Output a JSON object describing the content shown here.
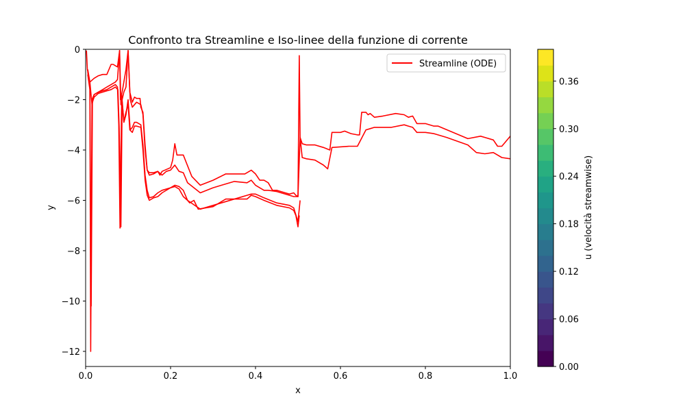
{
  "chart_data": {
    "type": "line",
    "title": "Confronto tra Streamline e Iso-linee della funzione di corrente",
    "xlabel": "x",
    "ylabel": "y",
    "xlim": [
      0,
      1.0
    ],
    "ylim": [
      -12.6,
      0
    ],
    "xticks": [
      "0.0",
      "0.2",
      "0.4",
      "0.6",
      "0.8",
      "1.0"
    ],
    "yticks": [
      "0",
      "−2",
      "−4",
      "−6",
      "−8",
      "−10",
      "−12"
    ],
    "xtick_values": [
      0,
      0.2,
      0.4,
      0.6,
      0.8,
      1.0
    ],
    "ytick_values": [
      0,
      -2,
      -4,
      -6,
      -8,
      -10,
      -12
    ],
    "grid": false,
    "legend": {
      "position": "top-right",
      "label": "Streamline (ODE)"
    },
    "line_color": "#ff0000",
    "series": [
      {
        "x": [
          0.002,
          0.004,
          0.01,
          0.02,
          0.03,
          0.04,
          0.05,
          0.06,
          0.065,
          0.07,
          0.075,
          0.08,
          0.082,
          0.086,
          0.09,
          0.095,
          0.1,
          0.104,
          0.11,
          0.115,
          0.12,
          0.128,
          0.13,
          0.135,
          0.14,
          0.145,
          0.15,
          0.16,
          0.17,
          0.175,
          0.18,
          0.2,
          0.205,
          0.21,
          0.215,
          0.225,
          0.23,
          0.25,
          0.27,
          0.3,
          0.33,
          0.36,
          0.375,
          0.39,
          0.4,
          0.41,
          0.42,
          0.43,
          0.44,
          0.45,
          0.46,
          0.47,
          0.48,
          0.49,
          0.495,
          0.5,
          0.503,
          0.505,
          0.51,
          0.52,
          0.54,
          0.56,
          0.575,
          0.58,
          0.6,
          0.61,
          0.625,
          0.64,
          0.645,
          0.65,
          0.66,
          0.665,
          0.67,
          0.68,
          0.7,
          0.73,
          0.75,
          0.76,
          0.77,
          0.78,
          0.8,
          0.82,
          0.83,
          0.9,
          0.93,
          0.94,
          0.96,
          0.97,
          0.98,
          1.0
        ],
        "y": [
          -0.05,
          -0.8,
          -1.3,
          -1.15,
          -1.05,
          -1.0,
          -1.0,
          -0.6,
          -0.6,
          -0.65,
          -0.7,
          -0.05,
          -2.0,
          -1.7,
          -1.3,
          -0.8,
          -0.05,
          -1.7,
          -2.1,
          -1.9,
          -1.95,
          -1.95,
          -2.3,
          -2.5,
          -3.8,
          -4.8,
          -4.9,
          -4.9,
          -4.85,
          -5.0,
          -4.85,
          -4.7,
          -4.4,
          -3.75,
          -4.2,
          -4.2,
          -4.2,
          -5.05,
          -5.4,
          -5.2,
          -4.95,
          -4.95,
          -4.95,
          -4.8,
          -4.95,
          -5.2,
          -5.2,
          -5.3,
          -5.6,
          -5.6,
          -5.65,
          -5.7,
          -5.75,
          -5.7,
          -5.8,
          -5.85,
          -0.25,
          -3.5,
          -3.75,
          -3.8,
          -3.8,
          -3.9,
          -4.0,
          -3.3,
          -3.3,
          -3.25,
          -3.35,
          -3.4,
          -3.4,
          -2.5,
          -2.5,
          -2.6,
          -2.55,
          -2.7,
          -2.65,
          -2.55,
          -2.6,
          -2.7,
          -2.65,
          -2.95,
          -2.95,
          -3.05,
          -3.05,
          -3.55,
          -3.45,
          -3.5,
          -3.6,
          -3.85,
          -3.85,
          -3.45
        ]
      },
      {
        "x": [
          0.005,
          0.01,
          0.015,
          0.02,
          0.03,
          0.04,
          0.05,
          0.06,
          0.07,
          0.075,
          0.08,
          0.083,
          0.086,
          0.09,
          0.095,
          0.1,
          0.105,
          0.11,
          0.115,
          0.12,
          0.13,
          0.135,
          0.14,
          0.145,
          0.15,
          0.16,
          0.17,
          0.18,
          0.19,
          0.2,
          0.21,
          0.22,
          0.23,
          0.24,
          0.27,
          0.3,
          0.32,
          0.35,
          0.38,
          0.39,
          0.4,
          0.42,
          0.43,
          0.45,
          0.48,
          0.49,
          0.5,
          0.505,
          0.51,
          0.52,
          0.54,
          0.56,
          0.57,
          0.58,
          0.62,
          0.63,
          0.64,
          0.66,
          0.67,
          0.68,
          0.7,
          0.72,
          0.75,
          0.76,
          0.77,
          0.78,
          0.8,
          0.82,
          0.85,
          0.9,
          0.92,
          0.94,
          0.96,
          0.98,
          1.0
        ],
        "y": [
          -0.8,
          -1.3,
          -2.2,
          -1.8,
          -1.7,
          -1.6,
          -1.5,
          -1.4,
          -1.3,
          -1.2,
          -0.05,
          -2.2,
          -2.0,
          -1.7,
          -1.5,
          -0.05,
          -2.0,
          -2.3,
          -2.2,
          -2.1,
          -2.2,
          -2.6,
          -4.0,
          -4.8,
          -5.0,
          -4.95,
          -4.85,
          -5.0,
          -4.85,
          -4.8,
          -4.6,
          -4.85,
          -4.9,
          -5.3,
          -5.7,
          -5.5,
          -5.4,
          -5.25,
          -5.3,
          -5.2,
          -5.4,
          -5.6,
          -5.6,
          -5.65,
          -5.8,
          -5.85,
          -5.85,
          -3.5,
          -4.3,
          -4.35,
          -4.4,
          -4.6,
          -4.75,
          -3.9,
          -3.85,
          -3.85,
          -3.85,
          -3.2,
          -3.15,
          -3.1,
          -3.1,
          -3.1,
          -3.0,
          -3.05,
          -3.1,
          -3.3,
          -3.3,
          -3.35,
          -3.5,
          -3.8,
          -4.1,
          -4.15,
          -4.1,
          -4.3,
          -4.35
        ]
      },
      {
        "x": [
          0.005,
          0.01,
          0.012,
          0.015,
          0.02,
          0.03,
          0.04,
          0.05,
          0.06,
          0.07,
          0.075,
          0.078,
          0.081,
          0.085,
          0.09,
          0.095,
          0.1,
          0.105,
          0.11,
          0.115,
          0.12,
          0.13,
          0.135,
          0.14,
          0.145,
          0.15,
          0.16,
          0.17,
          0.18,
          0.2,
          0.21,
          0.22,
          0.23,
          0.24,
          0.27,
          0.3,
          0.33,
          0.36,
          0.38,
          0.39,
          0.4,
          0.42,
          0.45,
          0.48,
          0.49,
          0.5,
          0.505
        ],
        "y": [
          -0.9,
          -1.5,
          -12.0,
          -2.0,
          -1.8,
          -1.7,
          -1.65,
          -1.6,
          -1.5,
          -1.4,
          -1.5,
          -3.0,
          -7.1,
          -1.8,
          -2.9,
          -2.6,
          -2.0,
          -3.2,
          -3.1,
          -2.9,
          -2.9,
          -3.0,
          -3.8,
          -5.0,
          -5.6,
          -5.9,
          -5.85,
          -5.7,
          -5.6,
          -5.5,
          -5.4,
          -5.45,
          -5.6,
          -6.0,
          -6.35,
          -6.2,
          -6.05,
          -5.9,
          -5.8,
          -5.75,
          -5.75,
          -5.9,
          -6.1,
          -6.2,
          -6.3,
          -6.85,
          -6.0
        ]
      },
      {
        "x": [
          0.005,
          0.01,
          0.013,
          0.016,
          0.02,
          0.03,
          0.04,
          0.05,
          0.06,
          0.07,
          0.076,
          0.079,
          0.083,
          0.086,
          0.09,
          0.095,
          0.1,
          0.104,
          0.11,
          0.115,
          0.12,
          0.13,
          0.135,
          0.14,
          0.145,
          0.15,
          0.16,
          0.17,
          0.18,
          0.2,
          0.21,
          0.22,
          0.23,
          0.24,
          0.245,
          0.255,
          0.265,
          0.3,
          0.33,
          0.36,
          0.38,
          0.39,
          0.4,
          0.42,
          0.45,
          0.48,
          0.49,
          0.495,
          0.5,
          0.503
        ],
        "y": [
          -1.0,
          -1.6,
          -10.2,
          -2.1,
          -1.9,
          -1.75,
          -1.7,
          -1.65,
          -1.6,
          -1.5,
          -1.6,
          -3.1,
          -7.05,
          -2.1,
          -2.85,
          -2.5,
          -2.2,
          -3.2,
          -3.3,
          -3.05,
          -3.05,
          -3.1,
          -4.0,
          -5.2,
          -5.8,
          -6.0,
          -5.9,
          -5.85,
          -5.7,
          -5.5,
          -5.45,
          -5.55,
          -5.85,
          -6.0,
          -6.1,
          -6.0,
          -6.35,
          -6.25,
          -5.95,
          -5.95,
          -5.95,
          -5.8,
          -5.85,
          -6.0,
          -6.2,
          -6.3,
          -6.4,
          -6.6,
          -7.05,
          -6.6
        ]
      }
    ],
    "colorbar": {
      "label": "u (velocità streamwise)",
      "ticks": [
        "0.00",
        "0.06",
        "0.12",
        "0.18",
        "0.24",
        "0.30",
        "0.36"
      ],
      "tick_values": [
        0,
        0.06,
        0.12,
        0.18,
        0.24,
        0.3,
        0.36
      ],
      "range": [
        0,
        0.4
      ],
      "levels": 20,
      "colormap": "viridis",
      "colors": [
        "#440154",
        "#481568",
        "#482677",
        "#453781",
        "#3f4788",
        "#39558c",
        "#32648e",
        "#2d718e",
        "#287d8e",
        "#238a8d",
        "#1f968b",
        "#20a386",
        "#29af7f",
        "#3dbc74",
        "#56c667",
        "#75d054",
        "#95d840",
        "#bade28",
        "#dde318",
        "#fde725"
      ]
    }
  }
}
